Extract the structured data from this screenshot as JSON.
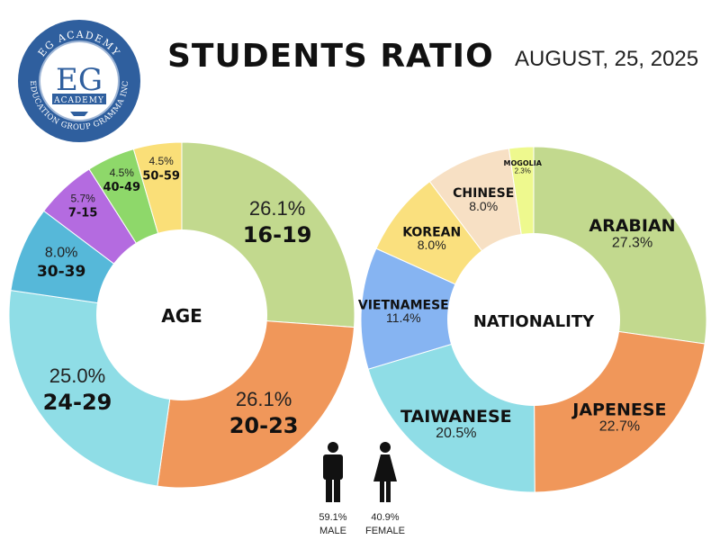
{
  "header": {
    "title": "STUDENTS RATIO",
    "date": "AUGUST, 25, 2025"
  },
  "logo": {
    "arc_top": "EG ACADEMY",
    "arc_bottom": "EDUCATION GROUP GRAMMA INC",
    "monogram": "EG",
    "banner": "ACADEMY",
    "colors": {
      "ring": "#2f5f9e",
      "inner": "#ffffff"
    }
  },
  "chart_data": [
    {
      "type": "pie",
      "title": "AGE",
      "center_label": "AGE",
      "slices": [
        {
          "label": "16-19",
          "value": 26.1,
          "pct_label": "26.1%",
          "color": "#c2d98e",
          "size": "big"
        },
        {
          "label": "20-23",
          "value": 26.1,
          "pct_label": "26.1%",
          "color": "#f0975a",
          "size": "big"
        },
        {
          "label": "24-29",
          "value": 25.0,
          "pct_label": "25.0%",
          "color": "#8fdde6",
          "size": "big"
        },
        {
          "label": "30-39",
          "value": 8.0,
          "pct_label": "8.0%",
          "color": "#56b8d9",
          "size": "mid"
        },
        {
          "label": "7-15",
          "value": 5.7,
          "pct_label": "5.7%",
          "color": "#b46be0",
          "size": "small"
        },
        {
          "label": "40-49",
          "value": 4.5,
          "pct_label": "4.5%",
          "color": "#8ed86a",
          "size": "small"
        },
        {
          "label": "50-59",
          "value": 4.5,
          "pct_label": "4.5%",
          "color": "#fadf78",
          "size": "small"
        }
      ]
    },
    {
      "type": "pie",
      "title": "NATIONALITY",
      "center_label": "NATIONALITY",
      "slices": [
        {
          "label": "ARABIAN",
          "value": 27.3,
          "pct_label": "27.3%",
          "color": "#c2d98e",
          "size": "big"
        },
        {
          "label": "JAPENESE",
          "value": 22.7,
          "pct_label": "22.7%",
          "color": "#f0975a",
          "size": "big"
        },
        {
          "label": "TAIWANESE",
          "value": 20.5,
          "pct_label": "20.5%",
          "color": "#8fdde6",
          "size": "big"
        },
        {
          "label": "VIETNAMESE",
          "value": 11.4,
          "pct_label": "11.4%",
          "color": "#86b4f2",
          "size": "mid"
        },
        {
          "label": "KOREAN",
          "value": 8.0,
          "pct_label": "8.0%",
          "color": "#fae07e",
          "size": "mid"
        },
        {
          "label": "CHINESE",
          "value": 8.0,
          "pct_label": "8.0%",
          "color": "#f7e0c4",
          "size": "mid"
        },
        {
          "label": "MOGOLIA",
          "value": 2.3,
          "pct_label": "2.3%",
          "color": "#eef98e",
          "size": "tiny"
        }
      ]
    }
  ],
  "gender": {
    "male": {
      "pct": "59.1%",
      "label": "MALE",
      "value": 59.1
    },
    "female": {
      "pct": "40.9%",
      "label": "FEMALE",
      "value": 40.9
    }
  }
}
